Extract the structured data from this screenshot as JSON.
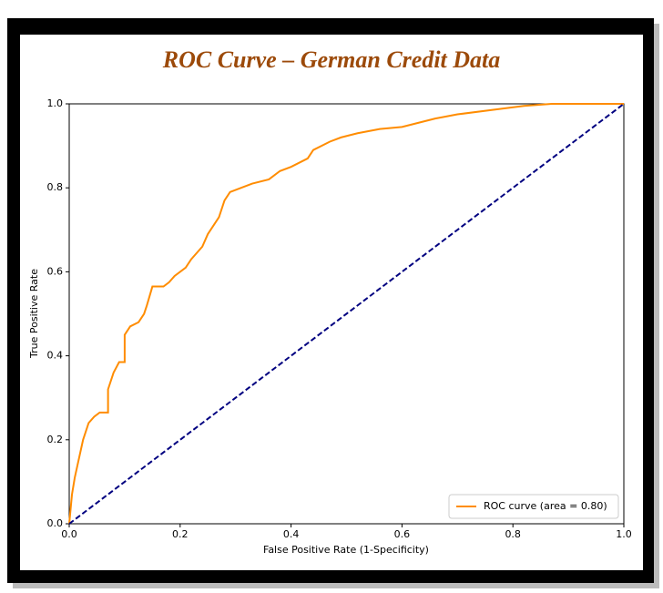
{
  "chart_data": {
    "type": "line",
    "title": "ROC Curve – German Credit Data",
    "x_label": "False Positive Rate (1-Specificity)",
    "y_label": "True Positive Rate",
    "xlim": [
      0,
      1
    ],
    "ylim": [
      0,
      1
    ],
    "xticks": [
      {
        "value": 0,
        "label": "0.0"
      },
      {
        "value": 0.2,
        "label": "0.2"
      },
      {
        "value": 0.4,
        "label": "0.4"
      },
      {
        "value": 0.6,
        "label": "0.6"
      },
      {
        "value": 0.8,
        "label": "0.8"
      },
      {
        "value": 1,
        "label": "1.0"
      }
    ],
    "yticks": [
      {
        "value": 0,
        "label": "0.0"
      },
      {
        "value": 0.2,
        "label": "0.2"
      },
      {
        "value": 0.4,
        "label": "0.4"
      },
      {
        "value": 0.6,
        "label": "0.6"
      },
      {
        "value": 0.8,
        "label": "0.8"
      },
      {
        "value": 1,
        "label": "1.0"
      }
    ],
    "legend": "lower right",
    "series": [
      {
        "name": "ROC curve (area = 0.80)",
        "color": "#ff8c00",
        "dash": false,
        "x": [
          0,
          0.005,
          0.01,
          0.015,
          0.025,
          0.035,
          0.045,
          0.055,
          0.07,
          0.07,
          0.08,
          0.09,
          0.1,
          0.1,
          0.11,
          0.125,
          0.135,
          0.14,
          0.15,
          0.17,
          0.18,
          0.19,
          0.21,
          0.22,
          0.24,
          0.25,
          0.26,
          0.27,
          0.28,
          0.29,
          0.31,
          0.33,
          0.36,
          0.38,
          0.4,
          0.43,
          0.44,
          0.47,
          0.49,
          0.52,
          0.56,
          0.6,
          0.63,
          0.66,
          0.7,
          0.76,
          0.82,
          0.87,
          1
        ],
        "values": [
          0,
          0.07,
          0.11,
          0.14,
          0.2,
          0.24,
          0.255,
          0.265,
          0.265,
          0.32,
          0.36,
          0.385,
          0.385,
          0.45,
          0.47,
          0.48,
          0.5,
          0.52,
          0.565,
          0.565,
          0.575,
          0.59,
          0.61,
          0.63,
          0.66,
          0.69,
          0.71,
          0.73,
          0.77,
          0.79,
          0.8,
          0.81,
          0.82,
          0.84,
          0.85,
          0.87,
          0.89,
          0.91,
          0.92,
          0.93,
          0.94,
          0.945,
          0.955,
          0.965,
          0.975,
          0.985,
          0.995,
          1,
          1
        ]
      },
      {
        "name": null,
        "color": "#000080",
        "dash": true,
        "x": [
          0,
          1
        ],
        "values": [
          0,
          1
        ]
      }
    ]
  }
}
